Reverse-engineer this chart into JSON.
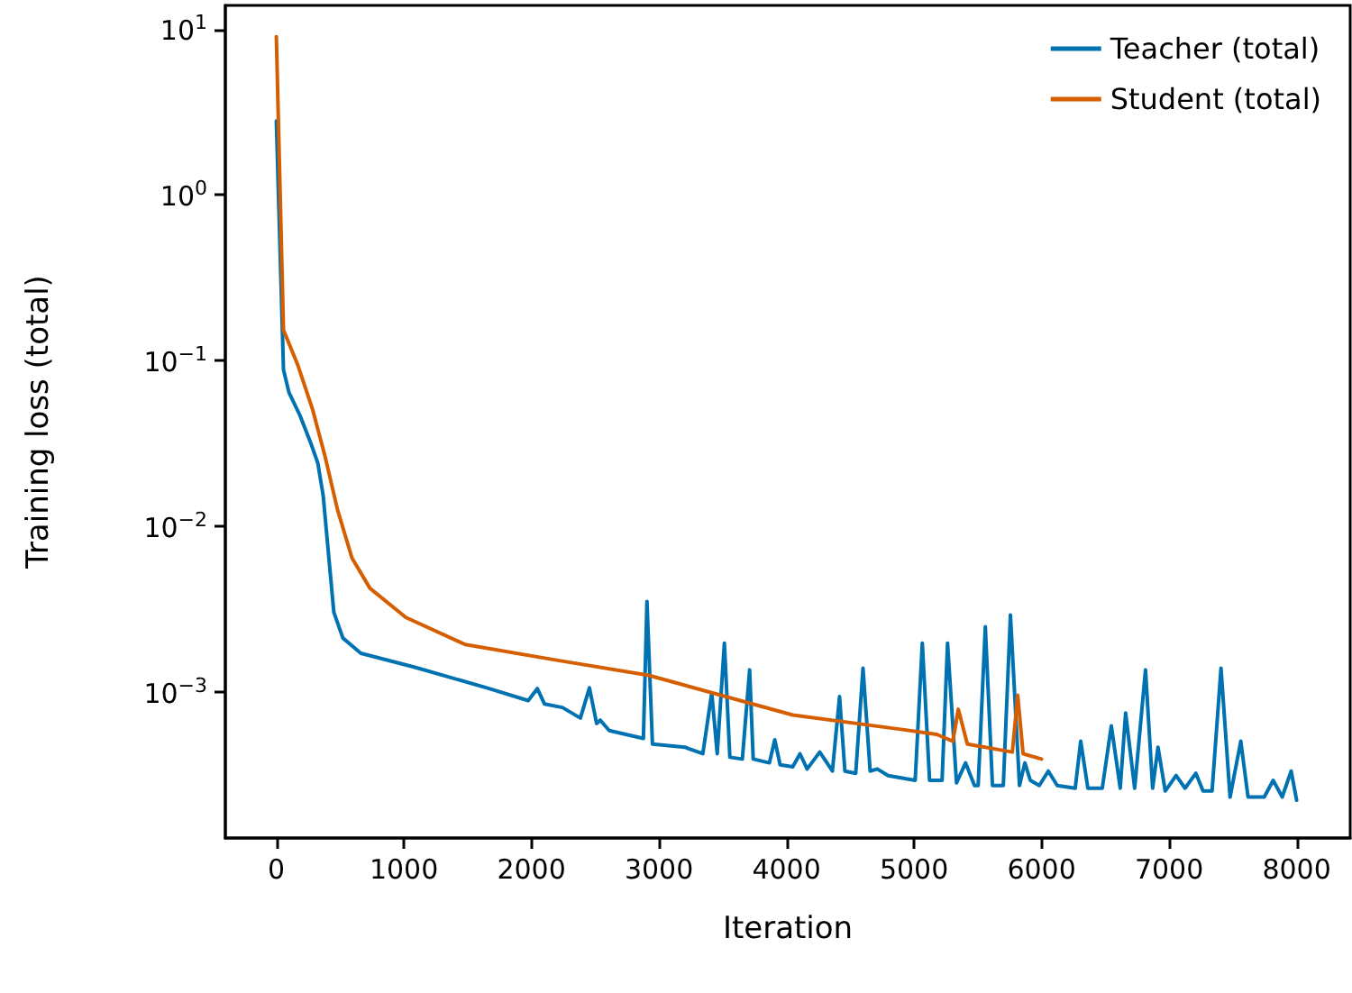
{
  "chart_data": {
    "type": "line",
    "xlabel": "Iteration",
    "ylabel": "Training loss (total)",
    "log": "y",
    "grid": false,
    "legend": "top right",
    "marker": "none",
    "line_style": "solid",
    "xlim": [
      -400,
      8420
    ],
    "xticks": [
      0,
      1000,
      2000,
      3000,
      4000,
      5000,
      6000,
      7000,
      8000
    ],
    "ylim": [
      0.00013,
      14
    ],
    "yticks": [
      {
        "value": 0.001,
        "label": "10$^{−3}$"
      },
      {
        "value": 0.01,
        "label": "10$^{−2}$"
      },
      {
        "value": 0.1,
        "label": "10$^{−1}$"
      },
      {
        "value": 1,
        "label": "10$^{0}$"
      },
      {
        "value": 10,
        "label": "10$^{1}$"
      }
    ],
    "series": [
      {
        "name": "Teacher (total)",
        "color": "#0072b2",
        "x": [
          0,
          56,
          99,
          183,
          268,
          325,
          367,
          451,
          522,
          663,
          1086,
          1651,
          1975,
          2046,
          2102,
          2243,
          2384,
          2455,
          2511,
          2540,
          2610,
          2878,
          2906,
          2949,
          3203,
          3344,
          3414,
          3457,
          3513,
          3556,
          3654,
          3711,
          3739,
          3866,
          3908,
          3950,
          4049,
          4106,
          4162,
          4261,
          4360,
          4416,
          4458,
          4543,
          4600,
          4656,
          4712,
          4797,
          5009,
          5065,
          5122,
          5178,
          5220,
          5263,
          5333,
          5404,
          5474,
          5503,
          5559,
          5615,
          5700,
          5756,
          5827,
          5869,
          5912,
          5982,
          6053,
          6123,
          6264,
          6307,
          6363,
          6476,
          6547,
          6617,
          6659,
          6730,
          6815,
          6871,
          6913,
          6970,
          7055,
          7125,
          7210,
          7266,
          7337,
          7407,
          7478,
          7562,
          7619,
          7746,
          7816,
          7887,
          7957,
          8000
        ],
        "values": [
          2.8,
          0.088,
          0.064,
          0.047,
          0.032,
          0.024,
          0.0153,
          0.003,
          0.0021,
          0.0017,
          0.0014,
          0.00105,
          0.00088,
          0.00104,
          0.00084,
          0.0008,
          0.00069,
          0.00105,
          0.00064,
          0.00067,
          0.00058,
          0.00052,
          0.0035,
          0.00048,
          0.00046,
          0.00042,
          0.00098,
          0.00042,
          0.00196,
          0.0004,
          0.00039,
          0.00135,
          0.00039,
          0.00037,
          0.00051,
          0.00036,
          0.00035,
          0.00042,
          0.00034,
          0.00043,
          0.00033,
          0.00093,
          0.00033,
          0.00032,
          0.00138,
          0.00033,
          0.00034,
          0.00031,
          0.00029,
          0.00196,
          0.00029,
          0.00029,
          0.00029,
          0.00196,
          0.00028,
          0.00037,
          0.00027,
          0.00027,
          0.00246,
          0.00027,
          0.00027,
          0.0029,
          0.00027,
          0.00037,
          0.00029,
          0.00027,
          0.00033,
          0.00027,
          0.00026,
          0.0005,
          0.00026,
          0.00026,
          0.00062,
          0.00026,
          0.00074,
          0.00026,
          0.00135,
          0.00026,
          0.00046,
          0.00025,
          0.00031,
          0.00026,
          0.00032,
          0.00025,
          0.00025,
          0.00138,
          0.00023,
          0.0005,
          0.00023,
          0.00023,
          0.00029,
          0.00023,
          0.00033,
          0.00022
        ]
      },
      {
        "name": "Student (total)",
        "color": "#d55e00",
        "x": [
          0,
          56,
          170,
          283,
          381,
          480,
          593,
          734,
          1016,
          1481,
          2187,
          2921,
          4049,
          4896,
          5178,
          5305,
          5347,
          5418,
          5771,
          5813,
          5855,
          6000
        ],
        "values": [
          9.05,
          0.153,
          0.093,
          0.051,
          0.0265,
          0.0125,
          0.0064,
          0.0042,
          0.0028,
          0.00192,
          0.00155,
          0.00125,
          0.00072,
          0.00059,
          0.00055,
          0.0005,
          0.00078,
          0.00048,
          0.00043,
          0.00095,
          0.00042,
          0.00039
        ]
      }
    ]
  }
}
